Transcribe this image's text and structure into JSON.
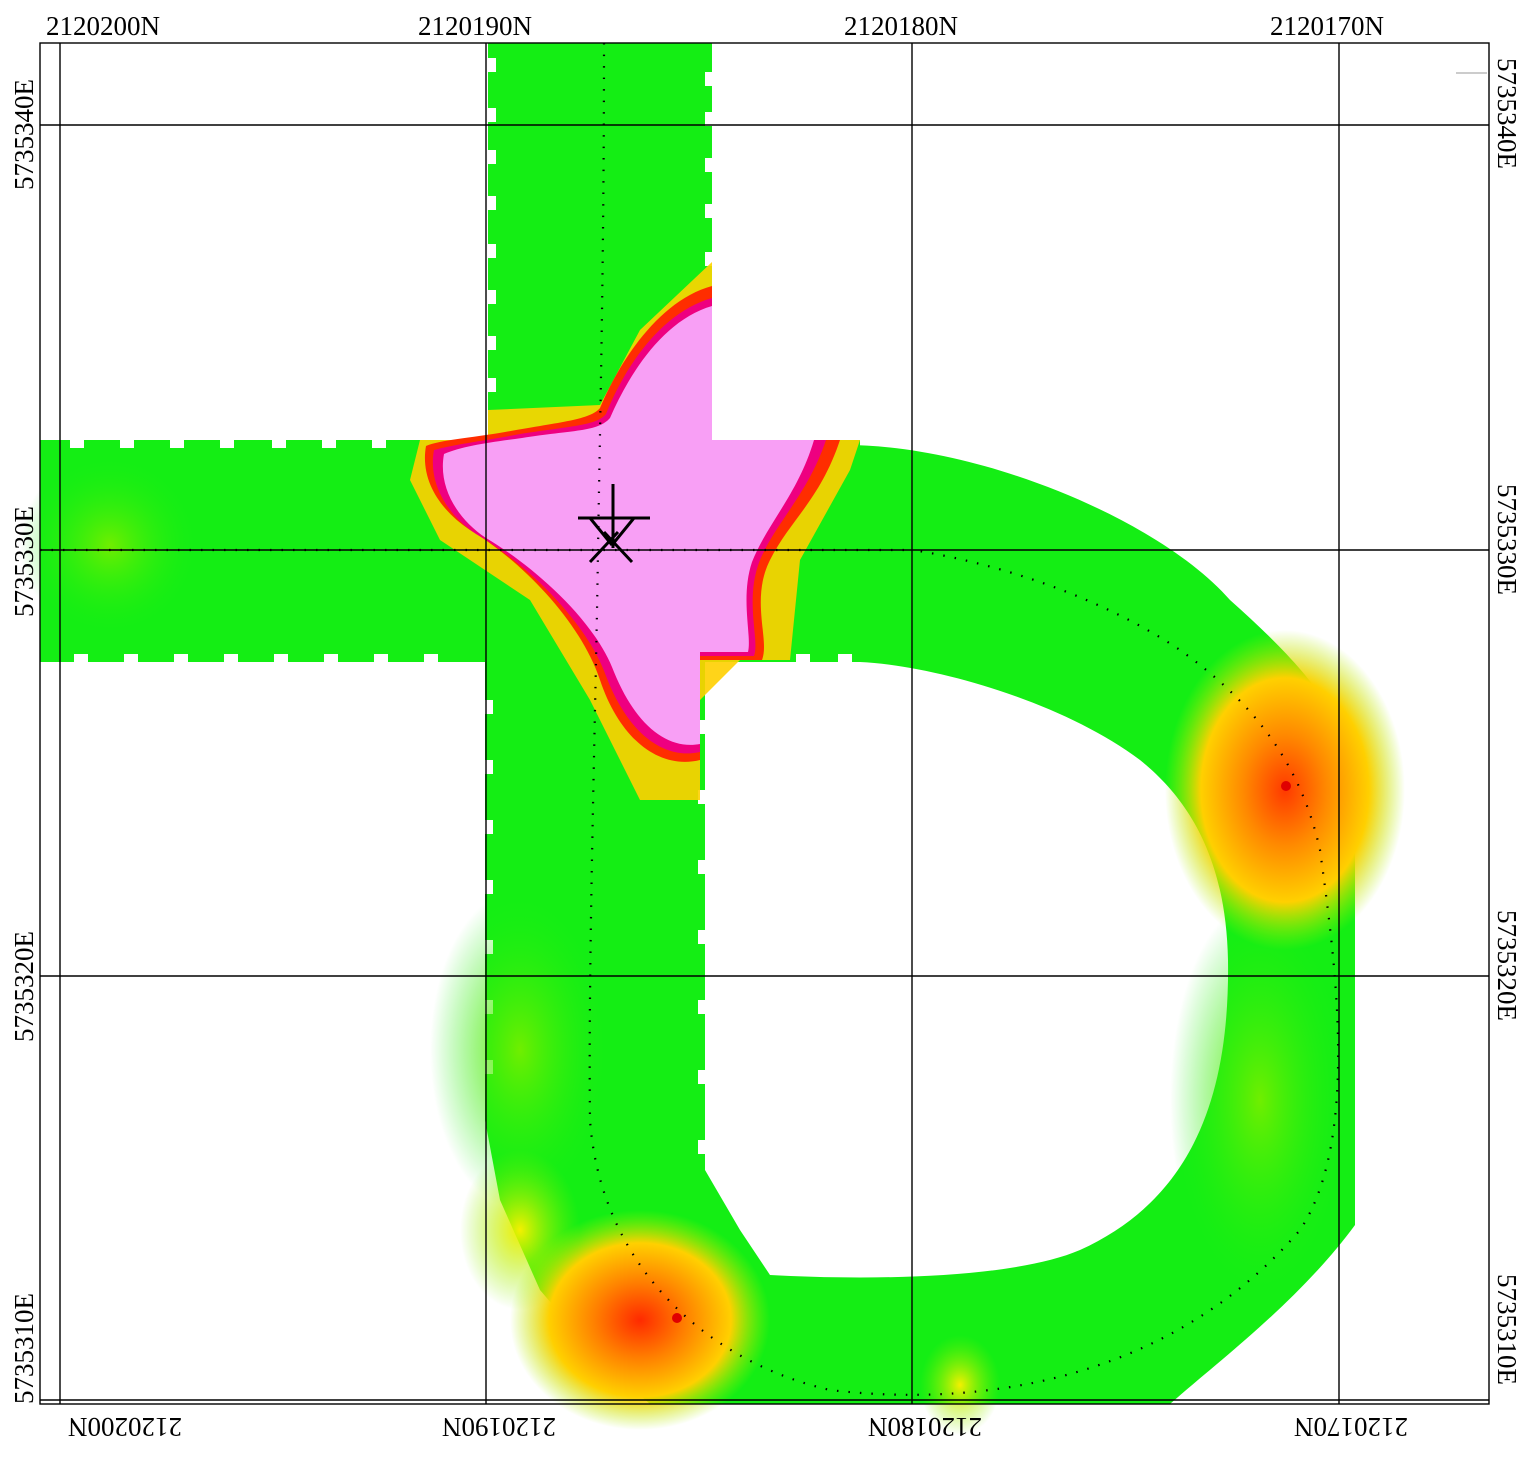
{
  "axes": {
    "top_labels": [
      "2120200N",
      "2120190N",
      "2120180N",
      "2120170N"
    ],
    "bottom_labels": [
      "2120200N",
      "2120190N",
      "2120180N",
      "2120170N"
    ],
    "left_labels": [
      "5735340E",
      "5735330E",
      "5735320E",
      "5735310E"
    ],
    "right_labels": [
      "5735340E",
      "5735330E",
      "5735320E",
      "5735310E"
    ]
  },
  "colors": {
    "low": "#14ee14",
    "mid": "#7cf000",
    "yellow": "#fff200",
    "orange": "#ff9900",
    "red": "#ff2000",
    "magenta": "#f000a0",
    "high": "#f89ff5",
    "grid": "#000000"
  },
  "marker": {
    "icon": "star-cross-marker-icon"
  }
}
